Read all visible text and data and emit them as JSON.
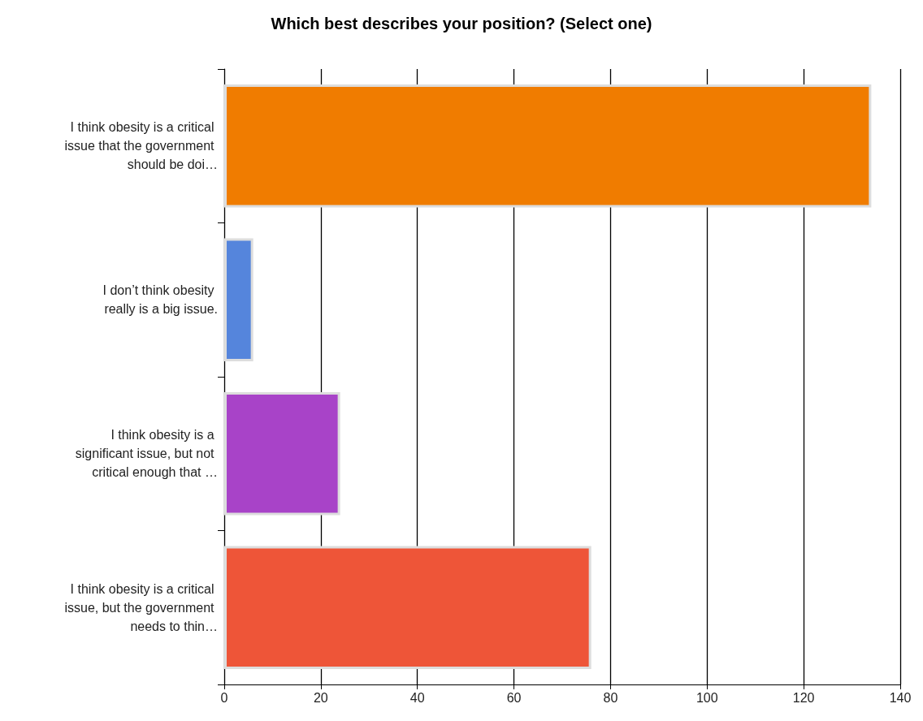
{
  "chart_data": {
    "type": "bar",
    "orientation": "horizontal",
    "title": "Which best describes your position? (Select one)",
    "categories": [
      "I think obesity is a critical issue that the government should be doi…",
      "I don’t think obesity really is a big issue.",
      "I think obesity is a significant issue, but not critical enough that …",
      "I think obesity is a critical issue, but the government needs to thin…"
    ],
    "values": [
      134,
      6,
      24,
      76
    ],
    "colors": [
      "#f07c00",
      "#5585dc",
      "#a843c8",
      "#ee5538"
    ],
    "xlim": [
      0,
      140
    ],
    "xticks": [
      0,
      20,
      40,
      60,
      80,
      100,
      120,
      140
    ],
    "grid": "x"
  }
}
